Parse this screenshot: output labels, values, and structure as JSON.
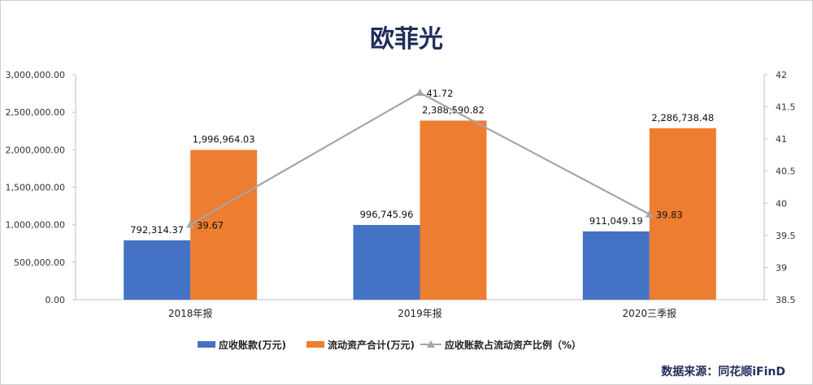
{
  "chart_data": {
    "type": "bar",
    "title": "欧菲光",
    "categories": [
      "2018年报",
      "2019年报",
      "2020三季报"
    ],
    "series": [
      {
        "name": "应收账款(万元)",
        "kind": "bar",
        "axis": "left",
        "color": "#4472c4",
        "values": [
          792314.37,
          996745.96,
          911049.19
        ],
        "labels": [
          "792,314.37",
          "996,745.96",
          "911,049.19"
        ]
      },
      {
        "name": "流动资产合计(万元)",
        "kind": "bar",
        "axis": "left",
        "color": "#ed7d31",
        "values": [
          1996964.03,
          2388590.82,
          2286738.48
        ],
        "labels": [
          "1,996,964.03",
          "2,388,590.82",
          "2,286,738.48"
        ]
      },
      {
        "name": "应收账款占流动资产比例（%）",
        "kind": "line",
        "axis": "right",
        "color": "#a5a5a5",
        "values": [
          39.67,
          41.72,
          39.83
        ],
        "labels": [
          "39.67",
          "41.72",
          "39.83"
        ]
      }
    ],
    "left_axis": {
      "min": 0,
      "max": 3000000,
      "ticks": [
        "0.00",
        "500,000.00",
        "1,000,000.00",
        "1,500,000.00",
        "2,000,000.00",
        "2,500,000.00",
        "3,000,000.00"
      ]
    },
    "right_axis": {
      "min": 38.5,
      "max": 42,
      "ticks": [
        "38.5",
        "39",
        "39.5",
        "40",
        "40.5",
        "41",
        "41.5",
        "42"
      ]
    },
    "grid": false,
    "legend_position": "bottom"
  },
  "source": "数据来源：同花顺iFinD"
}
